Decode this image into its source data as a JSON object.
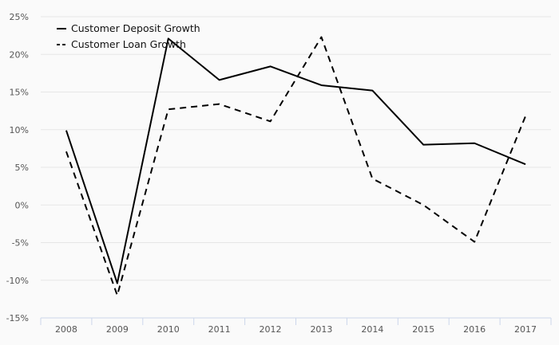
{
  "chart_data": {
    "type": "line",
    "title": "",
    "xlabel": "",
    "ylabel": "",
    "categories": [
      "2008",
      "2009",
      "2010",
      "2011",
      "2012",
      "2013",
      "2014",
      "2015",
      "2016",
      "2017"
    ],
    "ylim": [
      -15,
      25
    ],
    "yticks": [
      25,
      20,
      15,
      10,
      5,
      0,
      -5,
      -10,
      -15
    ],
    "ytick_labels": [
      "25%",
      "20%",
      "15%",
      "10%",
      "5%",
      "0%",
      "-5%",
      "-10%",
      "-15%"
    ],
    "grid": "horizontal",
    "legend_position": "top-left",
    "series": [
      {
        "name": "Customer Deposit Growth",
        "style": "solid",
        "color": "#000000",
        "values": [
          9.9,
          -10.4,
          22.1,
          16.6,
          18.4,
          15.9,
          15.2,
          8.0,
          8.2,
          5.4
        ]
      },
      {
        "name": "Customer Loan Growth",
        "style": "dashed",
        "color": "#000000",
        "values": [
          7.1,
          -12.0,
          12.7,
          13.4,
          11.1,
          22.3,
          3.5,
          0.0,
          -4.9,
          11.8
        ]
      }
    ]
  },
  "colors": {
    "background": "#fafafa",
    "grid": "#e6e6e6",
    "x_axis": "#ccd6eb",
    "tick_text": "#555555",
    "series": "#000000"
  }
}
